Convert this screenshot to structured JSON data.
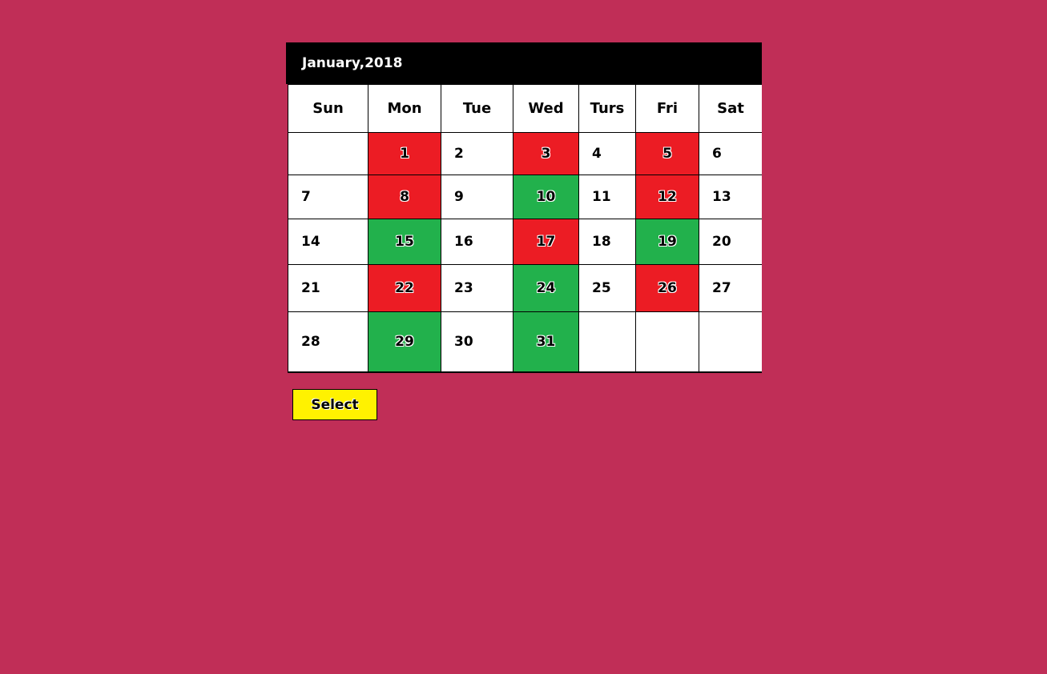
{
  "calendar": {
    "title": "January,2018",
    "weekdays": [
      "Sun",
      "Mon",
      "Tue",
      "Wed",
      "Turs",
      "Fri",
      "Sat"
    ],
    "weeks": [
      [
        {
          "day": ""
        },
        {
          "day": "1",
          "status": "red"
        },
        {
          "day": "2"
        },
        {
          "day": "3",
          "status": "red"
        },
        {
          "day": "4"
        },
        {
          "day": "5",
          "status": "red"
        },
        {
          "day": "6"
        }
      ],
      [
        {
          "day": "7"
        },
        {
          "day": "8",
          "status": "red"
        },
        {
          "day": "9"
        },
        {
          "day": "10",
          "status": "green"
        },
        {
          "day": "11"
        },
        {
          "day": "12",
          "status": "red"
        },
        {
          "day": "13"
        }
      ],
      [
        {
          "day": "14"
        },
        {
          "day": "15",
          "status": "green"
        },
        {
          "day": "16"
        },
        {
          "day": "17",
          "status": "red"
        },
        {
          "day": "18"
        },
        {
          "day": "19",
          "status": "green"
        },
        {
          "day": "20"
        }
      ],
      [
        {
          "day": "21"
        },
        {
          "day": "22",
          "status": "red"
        },
        {
          "day": "23"
        },
        {
          "day": "24",
          "status": "green"
        },
        {
          "day": "25"
        },
        {
          "day": "26",
          "status": "red"
        },
        {
          "day": "27"
        }
      ],
      [
        {
          "day": "28"
        },
        {
          "day": "29",
          "status": "green"
        },
        {
          "day": "30"
        },
        {
          "day": "31",
          "status": "green"
        },
        {
          "day": ""
        },
        {
          "day": ""
        },
        {
          "day": ""
        }
      ]
    ]
  },
  "actions": {
    "select_label": "Select"
  },
  "colors": {
    "background": "#c02e57",
    "header": "#000000",
    "red": "#ec1c24",
    "green": "#22b14c",
    "select_button": "#fff200"
  }
}
